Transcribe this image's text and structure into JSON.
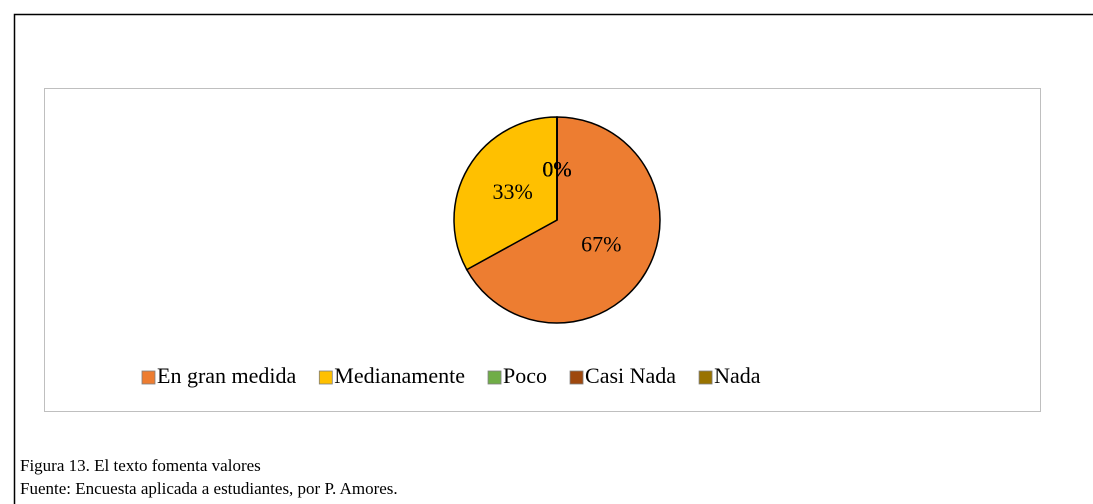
{
  "chart_data": {
    "type": "pie",
    "categories": [
      "En gran medida",
      "Medianamente",
      "Poco",
      "Casi Nada",
      "Nada"
    ],
    "values": [
      67,
      33,
      0,
      0,
      0
    ],
    "value_labels": [
      "67%",
      "33%",
      "0%",
      "0%",
      "0%"
    ],
    "colors": [
      "#ED7D31",
      "#FFC000",
      "#70AD47",
      "#9E480E",
      "#997300"
    ],
    "legend": "bottom",
    "caption": "Figura 13. El texto fomenta valores",
    "source": "Fuente: Encuesta aplicada a estudiantes, por P. Amores."
  }
}
